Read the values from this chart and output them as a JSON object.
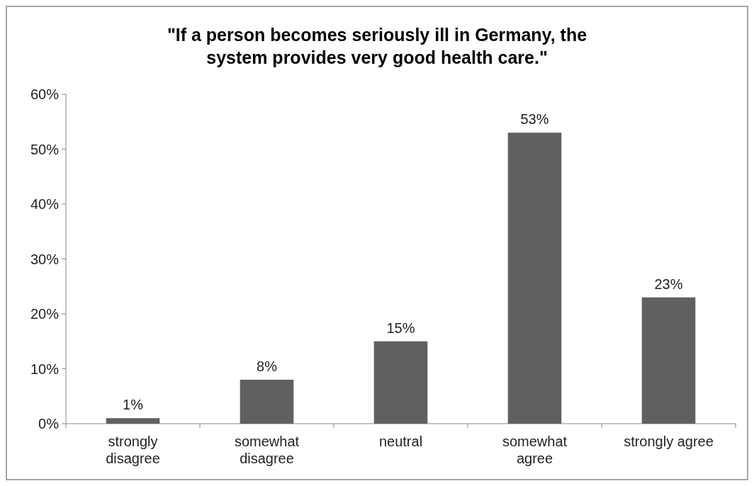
{
  "chart_data": {
    "type": "bar",
    "title": "\"If a person becomes seriously ill in Germany, the system provides very good health care.\"",
    "categories": [
      "strongly disagree",
      "somewhat disagree",
      "neutral",
      "somewhat agree",
      "strongly agree"
    ],
    "values": [
      1,
      8,
      15,
      53,
      23
    ],
    "value_labels": [
      "1%",
      "8%",
      "15%",
      "53%",
      "23%"
    ],
    "color": "#606060",
    "ylim": [
      0,
      60
    ],
    "yticks": [
      {
        "value": 0,
        "label": "0%"
      },
      {
        "value": 10,
        "label": "10%"
      },
      {
        "value": 20,
        "label": "20%"
      },
      {
        "value": 30,
        "label": "30%"
      },
      {
        "value": 40,
        "label": "40%"
      },
      {
        "value": 50,
        "label": "50%"
      },
      {
        "value": 60,
        "label": "60%"
      }
    ],
    "grid": false
  }
}
